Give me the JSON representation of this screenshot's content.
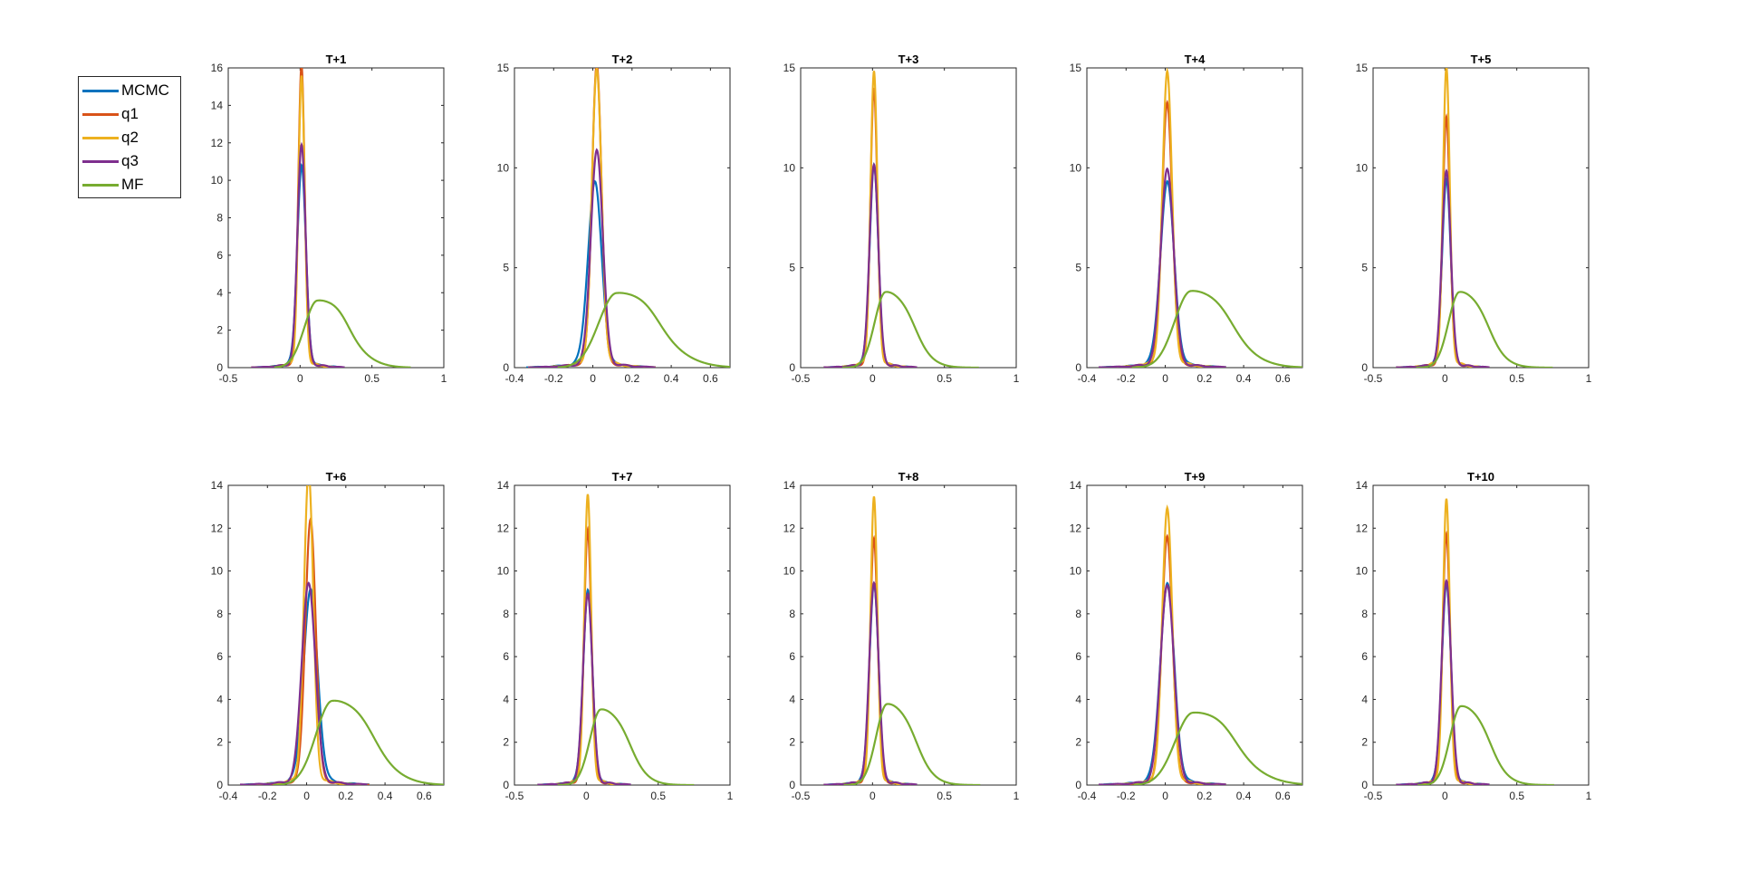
{
  "colors": {
    "MCMC": "#0072BD",
    "q1": "#D95319",
    "q2": "#EDB120",
    "q3": "#7E2F8E",
    "MF": "#77AC30"
  },
  "legend": {
    "items": [
      {
        "label": "MCMC",
        "color": "#0072BD"
      },
      {
        "label": "q1",
        "color": "#D95319"
      },
      {
        "label": "q2",
        "color": "#EDB120"
      },
      {
        "label": "q3",
        "color": "#7E2F8E"
      },
      {
        "label": "MF",
        "color": "#77AC30"
      }
    ]
  },
  "chart_data": [
    {
      "type": "line",
      "title": "T+1",
      "xlim": [
        -0.5,
        1
      ],
      "ylim": [
        0,
        16
      ],
      "xticks": [
        "-0.5",
        "0",
        "0.5",
        "1"
      ],
      "yticks": [
        "0",
        "2",
        "4",
        "6",
        "8",
        "10",
        "12",
        "14",
        "16"
      ],
      "xtick_values": [
        -0.5,
        0,
        0.5,
        1
      ],
      "ytick_values": [
        0,
        2,
        4,
        6,
        8,
        10,
        12,
        14,
        16
      ],
      "series": [
        {
          "name": "MCMC",
          "peak_x": 0.01,
          "peak_y": 10.3,
          "sigma": 0.03
        },
        {
          "name": "q1",
          "peak_x": 0.01,
          "peak_y": 15.7,
          "sigma": 0.022
        },
        {
          "name": "q2",
          "peak_x": 0.01,
          "peak_y": 14.8,
          "sigma": 0.022
        },
        {
          "name": "q3",
          "peak_x": 0.01,
          "peak_y": 11.6,
          "sigma": 0.028
        },
        {
          "name": "MF",
          "peak_x": 0.12,
          "peak_y": 3.55,
          "sigma": 0.12
        }
      ]
    },
    {
      "type": "line",
      "title": "T+2",
      "xlim": [
        -0.4,
        0.7
      ],
      "ylim": [
        0,
        15
      ],
      "xticks": [
        "-0.4",
        "-0.2",
        "0",
        "0.2",
        "0.4",
        "0.6"
      ],
      "yticks": [
        "0",
        "5",
        "10",
        "15"
      ],
      "xtick_values": [
        -0.4,
        -0.2,
        0,
        0.2,
        0.4,
        0.6
      ],
      "ytick_values": [
        0,
        5,
        10,
        15
      ],
      "series": [
        {
          "name": "MCMC",
          "peak_x": 0.01,
          "peak_y": 8.9,
          "sigma": 0.035
        },
        {
          "name": "q1",
          "peak_x": 0.02,
          "peak_y": 14.8,
          "sigma": 0.024
        },
        {
          "name": "q2",
          "peak_x": 0.02,
          "peak_y": 14.2,
          "sigma": 0.025
        },
        {
          "name": "q3",
          "peak_x": 0.02,
          "peak_y": 10.6,
          "sigma": 0.03
        },
        {
          "name": "MF",
          "peak_x": 0.12,
          "peak_y": 3.7,
          "sigma": 0.12
        }
      ]
    },
    {
      "type": "line",
      "title": "T+3",
      "xlim": [
        -0.5,
        1
      ],
      "ylim": [
        0,
        15
      ],
      "xticks": [
        "-0.5",
        "0",
        "0.5",
        "1"
      ],
      "yticks": [
        "0",
        "5",
        "10",
        "15"
      ],
      "xtick_values": [
        -0.5,
        0,
        0.5,
        1
      ],
      "ytick_values": [
        0,
        5,
        10,
        15
      ],
      "series": [
        {
          "name": "MCMC",
          "peak_x": 0.01,
          "peak_y": 9.7,
          "sigma": 0.03
        },
        {
          "name": "q1",
          "peak_x": 0.01,
          "peak_y": 13.6,
          "sigma": 0.024
        },
        {
          "name": "q2",
          "peak_x": 0.01,
          "peak_y": 14.1,
          "sigma": 0.024
        },
        {
          "name": "q3",
          "peak_x": 0.01,
          "peak_y": 9.9,
          "sigma": 0.03
        },
        {
          "name": "MF",
          "peak_x": 0.09,
          "peak_y": 3.75,
          "sigma": 0.1
        }
      ]
    },
    {
      "type": "line",
      "title": "T+4",
      "xlim": [
        -0.4,
        0.7
      ],
      "ylim": [
        0,
        15
      ],
      "xticks": [
        "-0.4",
        "-0.2",
        "0",
        "0.2",
        "0.4",
        "0.6"
      ],
      "yticks": [
        "0",
        "5",
        "10",
        "15"
      ],
      "xtick_values": [
        -0.4,
        -0.2,
        0,
        0.2,
        0.4,
        0.6
      ],
      "ytick_values": [
        0,
        5,
        10,
        15
      ],
      "series": [
        {
          "name": "MCMC",
          "peak_x": 0.01,
          "peak_y": 8.9,
          "sigma": 0.035
        },
        {
          "name": "q1",
          "peak_x": 0.01,
          "peak_y": 12.9,
          "sigma": 0.026
        },
        {
          "name": "q2",
          "peak_x": 0.01,
          "peak_y": 14.1,
          "sigma": 0.025
        },
        {
          "name": "q3",
          "peak_x": 0.01,
          "peak_y": 9.7,
          "sigma": 0.032
        },
        {
          "name": "MF",
          "peak_x": 0.13,
          "peak_y": 3.8,
          "sigma": 0.11
        }
      ]
    },
    {
      "type": "line",
      "title": "T+5",
      "xlim": [
        -0.5,
        1
      ],
      "ylim": [
        0,
        15
      ],
      "xticks": [
        "-0.5",
        "0",
        "0.5",
        "1"
      ],
      "yticks": [
        "0",
        "5",
        "10",
        "15"
      ],
      "xtick_values": [
        -0.5,
        0,
        0.5,
        1
      ],
      "ytick_values": [
        0,
        5,
        10,
        15
      ],
      "series": [
        {
          "name": "MCMC",
          "peak_x": 0.01,
          "peak_y": 9.0,
          "sigma": 0.03
        },
        {
          "name": "q1",
          "peak_x": 0.01,
          "peak_y": 12.2,
          "sigma": 0.025
        },
        {
          "name": "q2",
          "peak_x": 0.01,
          "peak_y": 14.3,
          "sigma": 0.024
        },
        {
          "name": "q3",
          "peak_x": 0.01,
          "peak_y": 9.6,
          "sigma": 0.03
        },
        {
          "name": "MF",
          "peak_x": 0.1,
          "peak_y": 3.75,
          "sigma": 0.1
        }
      ]
    },
    {
      "type": "line",
      "title": "T+6",
      "xlim": [
        -0.4,
        0.7
      ],
      "ylim": [
        0,
        14
      ],
      "xticks": [
        "-0.4",
        "-0.2",
        "0",
        "0.2",
        "0.4",
        "0.6"
      ],
      "yticks": [
        "0",
        "2",
        "4",
        "6",
        "8",
        "10",
        "12",
        "14"
      ],
      "xtick_values": [
        -0.4,
        -0.2,
        0,
        0.2,
        0.4,
        0.6
      ],
      "ytick_values": [
        0,
        2,
        4,
        6,
        8,
        10,
        12,
        14
      ],
      "series": [
        {
          "name": "MCMC",
          "peak_x": 0.02,
          "peak_y": 8.7,
          "sigma": 0.036
        },
        {
          "name": "q1",
          "peak_x": 0.02,
          "peak_y": 12.1,
          "sigma": 0.026
        },
        {
          "name": "q2",
          "peak_x": 0.01,
          "peak_y": 13.9,
          "sigma": 0.024
        },
        {
          "name": "q3",
          "peak_x": 0.01,
          "peak_y": 9.2,
          "sigma": 0.034
        },
        {
          "name": "MF",
          "peak_x": 0.13,
          "peak_y": 3.9,
          "sigma": 0.11
        }
      ]
    },
    {
      "type": "line",
      "title": "T+7",
      "xlim": [
        -0.5,
        1
      ],
      "ylim": [
        0,
        14
      ],
      "xticks": [
        "-0.5",
        "0",
        "0.5",
        "1"
      ],
      "yticks": [
        "0",
        "2",
        "4",
        "6",
        "8",
        "10",
        "12",
        "14"
      ],
      "xtick_values": [
        -0.5,
        0,
        0.5,
        1
      ],
      "ytick_values": [
        0,
        2,
        4,
        6,
        8,
        10,
        12,
        14
      ],
      "series": [
        {
          "name": "MCMC",
          "peak_x": 0.01,
          "peak_y": 8.7,
          "sigma": 0.032
        },
        {
          "name": "q1",
          "peak_x": 0.01,
          "peak_y": 11.6,
          "sigma": 0.025
        },
        {
          "name": "q2",
          "peak_x": 0.01,
          "peak_y": 12.9,
          "sigma": 0.024
        },
        {
          "name": "q3",
          "peak_x": 0.01,
          "peak_y": 8.7,
          "sigma": 0.032
        },
        {
          "name": "MF",
          "peak_x": 0.1,
          "peak_y": 3.5,
          "sigma": 0.1
        }
      ]
    },
    {
      "type": "line",
      "title": "T+8",
      "xlim": [
        -0.5,
        1
      ],
      "ylim": [
        0,
        14
      ],
      "xticks": [
        "-0.5",
        "0",
        "0.5",
        "1"
      ],
      "yticks": [
        "0",
        "2",
        "4",
        "6",
        "8",
        "10",
        "12",
        "14"
      ],
      "xtick_values": [
        -0.5,
        0,
        0.5,
        1
      ],
      "ytick_values": [
        0,
        2,
        4,
        6,
        8,
        10,
        12,
        14
      ],
      "series": [
        {
          "name": "MCMC",
          "peak_x": 0.01,
          "peak_y": 9.0,
          "sigma": 0.032
        },
        {
          "name": "q1",
          "peak_x": 0.01,
          "peak_y": 11.2,
          "sigma": 0.026
        },
        {
          "name": "q2",
          "peak_x": 0.01,
          "peak_y": 12.8,
          "sigma": 0.024
        },
        {
          "name": "q3",
          "peak_x": 0.01,
          "peak_y": 9.2,
          "sigma": 0.032
        },
        {
          "name": "MF",
          "peak_x": 0.1,
          "peak_y": 3.75,
          "sigma": 0.1
        }
      ]
    },
    {
      "type": "line",
      "title": "T+9",
      "xlim": [
        -0.4,
        0.7
      ],
      "ylim": [
        0,
        14
      ],
      "xticks": [
        "-0.4",
        "-0.2",
        "0",
        "0.2",
        "0.4",
        "0.6"
      ],
      "yticks": [
        "0",
        "2",
        "4",
        "6",
        "8",
        "10",
        "12",
        "14"
      ],
      "xtick_values": [
        -0.4,
        -0.2,
        0,
        0.2,
        0.4,
        0.6
      ],
      "ytick_values": [
        0,
        2,
        4,
        6,
        8,
        10,
        12,
        14
      ],
      "series": [
        {
          "name": "MCMC",
          "peak_x": 0.01,
          "peak_y": 9.0,
          "sigma": 0.036
        },
        {
          "name": "q1",
          "peak_x": 0.01,
          "peak_y": 11.3,
          "sigma": 0.027
        },
        {
          "name": "q2",
          "peak_x": 0.01,
          "peak_y": 12.3,
          "sigma": 0.026
        },
        {
          "name": "q3",
          "peak_x": 0.01,
          "peak_y": 9.1,
          "sigma": 0.034
        },
        {
          "name": "MF",
          "peak_x": 0.14,
          "peak_y": 3.35,
          "sigma": 0.12
        }
      ]
    },
    {
      "type": "line",
      "title": "T+10",
      "xlim": [
        -0.5,
        1
      ],
      "ylim": [
        0,
        14
      ],
      "xticks": [
        "-0.5",
        "0",
        "0.5",
        "1"
      ],
      "yticks": [
        "0",
        "2",
        "4",
        "6",
        "8",
        "10",
        "12",
        "14"
      ],
      "xtick_values": [
        -0.5,
        0,
        0.5,
        1
      ],
      "ytick_values": [
        0,
        2,
        4,
        6,
        8,
        10,
        12,
        14
      ],
      "series": [
        {
          "name": "MCMC",
          "peak_x": 0.01,
          "peak_y": 9.0,
          "sigma": 0.032
        },
        {
          "name": "q1",
          "peak_x": 0.01,
          "peak_y": 11.4,
          "sigma": 0.026
        },
        {
          "name": "q2",
          "peak_x": 0.01,
          "peak_y": 12.7,
          "sigma": 0.024
        },
        {
          "name": "q3",
          "peak_x": 0.01,
          "peak_y": 9.3,
          "sigma": 0.032
        },
        {
          "name": "MF",
          "peak_x": 0.11,
          "peak_y": 3.65,
          "sigma": 0.1
        }
      ]
    }
  ]
}
